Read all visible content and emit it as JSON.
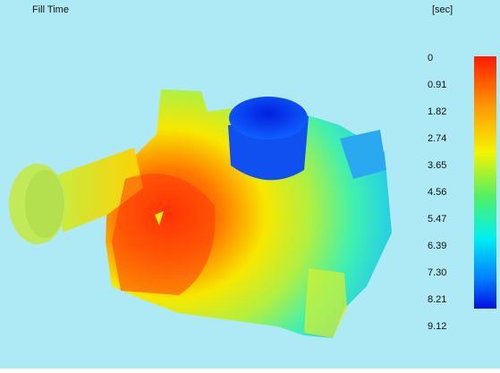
{
  "title": "Fill Time",
  "unit": "[sec]",
  "legend": {
    "labels": [
      "0",
      "0.91",
      "1.82",
      "2.74",
      "3.65",
      "4.56",
      "5.47",
      "6.39",
      "7.30",
      "8.21",
      "9.12"
    ]
  }
}
